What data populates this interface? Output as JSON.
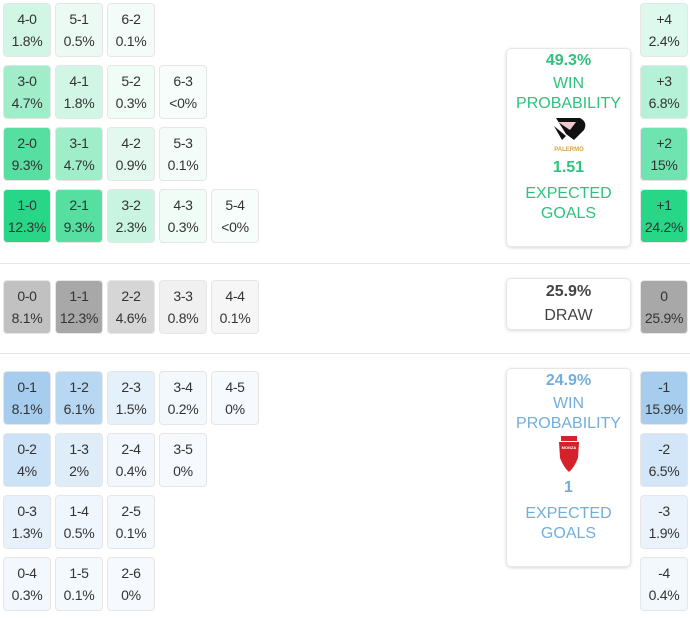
{
  "home": {
    "win_pct": "49.3%",
    "win_label_1": "WIN",
    "win_label_2": "PROBABILITY",
    "xg": "1.51",
    "xg_label_1": "EXPECTED",
    "xg_label_2": "GOALS",
    "team_logo_text": "PALERMO",
    "color": "#2fc27e",
    "grid": [
      [
        [
          "4-0",
          "1.8%"
        ],
        [
          "5-1",
          "0.5%"
        ],
        [
          "6-2",
          "0.1%"
        ]
      ],
      [
        [
          "3-0",
          "4.7%"
        ],
        [
          "4-1",
          "1.8%"
        ],
        [
          "5-2",
          "0.3%"
        ],
        [
          "6-3",
          "<0%"
        ]
      ],
      [
        [
          "2-0",
          "9.3%"
        ],
        [
          "3-1",
          "4.7%"
        ],
        [
          "4-2",
          "0.9%"
        ],
        [
          "5-3",
          "0.1%"
        ]
      ],
      [
        [
          "1-0",
          "12.3%"
        ],
        [
          "2-1",
          "9.3%"
        ],
        [
          "3-2",
          "2.3%"
        ],
        [
          "4-3",
          "0.3%"
        ],
        [
          "5-4",
          "<0%"
        ]
      ]
    ],
    "margins": [
      [
        "+4",
        "2.4%"
      ],
      [
        "+3",
        "6.8%"
      ],
      [
        "+2",
        "15%"
      ],
      [
        "+1",
        "24.2%"
      ]
    ]
  },
  "draw": {
    "pct": "25.9%",
    "label": "DRAW",
    "grid": [
      [
        [
          "0-0",
          "8.1%"
        ],
        [
          "1-1",
          "12.3%"
        ],
        [
          "2-2",
          "4.6%"
        ],
        [
          "3-3",
          "0.8%"
        ],
        [
          "4-4",
          "0.1%"
        ]
      ]
    ],
    "margins": [
      [
        "0",
        "25.9%"
      ]
    ]
  },
  "away": {
    "win_pct": "24.9%",
    "win_label_1": "WIN",
    "win_label_2": "PROBABILITY",
    "xg": "1",
    "xg_label_1": "EXPECTED",
    "xg_label_2": "GOALS",
    "team_logo_text": "MONZA",
    "color": "#72aedc",
    "grid": [
      [
        [
          "0-1",
          "8.1%"
        ],
        [
          "1-2",
          "6.1%"
        ],
        [
          "2-3",
          "1.5%"
        ],
        [
          "3-4",
          "0.2%"
        ],
        [
          "4-5",
          "0%"
        ]
      ],
      [
        [
          "0-2",
          "4%"
        ],
        [
          "1-3",
          "2%"
        ],
        [
          "2-4",
          "0.4%"
        ],
        [
          "3-5",
          "0%"
        ]
      ],
      [
        [
          "0-3",
          "1.3%"
        ],
        [
          "1-4",
          "0.5%"
        ],
        [
          "2-5",
          "0.1%"
        ]
      ],
      [
        [
          "0-4",
          "0.3%"
        ],
        [
          "1-5",
          "0.1%"
        ],
        [
          "2-6",
          "0%"
        ]
      ]
    ],
    "margins": [
      [
        "-1",
        "15.9%"
      ],
      [
        "-2",
        "6.5%"
      ],
      [
        "-3",
        "1.9%"
      ],
      [
        "-4",
        "0.4%"
      ]
    ]
  }
}
